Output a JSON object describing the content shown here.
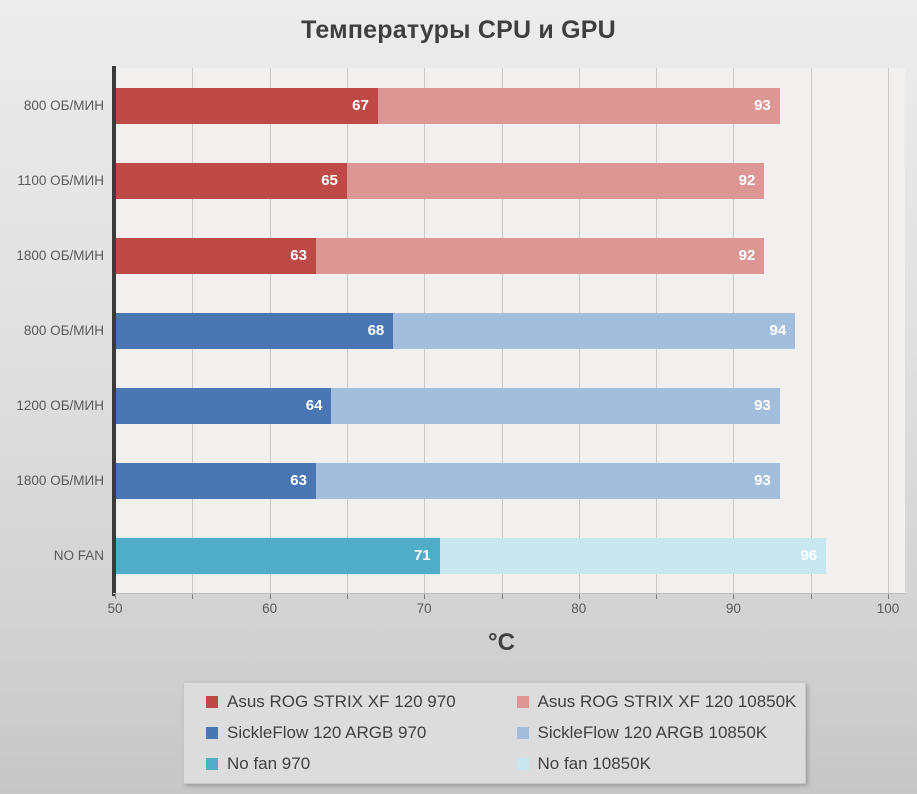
{
  "title": "Температуры CPU и GPU",
  "chart_data": {
    "type": "bar",
    "orientation": "horizontal",
    "title": "Температуры CPU и GPU",
    "xlabel": "°C",
    "xlim": [
      50,
      100
    ],
    "xticks_major": [
      50,
      60,
      70,
      80,
      90,
      100
    ],
    "minor_tick_step": 5,
    "grid": true,
    "legend_position": "bottom",
    "legend": [
      {
        "label": "Asus ROG STRIX XF 120 970",
        "color": "#be4a47"
      },
      {
        "label": "Asus ROG STRIX XF 120 10850K",
        "color": "#dc9795"
      },
      {
        "label": "SickleFlow 120 ARGB 970",
        "color": "#4a77b4"
      },
      {
        "label": "SickleFlow 120 ARGB 10850K",
        "color": "#a3bddc"
      },
      {
        "label": "No fan 970",
        "color": "#4fadc7"
      },
      {
        "label": "No fan 10850K",
        "color": "#c8e6ef"
      }
    ],
    "rows": [
      {
        "category": "800 ОБ/МИН",
        "values": [
          67,
          93
        ],
        "legend_pair": [
          0,
          1
        ]
      },
      {
        "category": "1100 ОБ/МИН",
        "values": [
          65,
          92
        ],
        "legend_pair": [
          0,
          1
        ]
      },
      {
        "category": "1800 ОБ/МИН",
        "values": [
          63,
          92
        ],
        "legend_pair": [
          0,
          1
        ]
      },
      {
        "category": "800 ОБ/МИН",
        "values": [
          68,
          94
        ],
        "legend_pair": [
          2,
          3
        ]
      },
      {
        "category": "1200 ОБ/МИН",
        "values": [
          64,
          93
        ],
        "legend_pair": [
          2,
          3
        ]
      },
      {
        "category": "1800 ОБ/МИН",
        "values": [
          63,
          93
        ],
        "legend_pair": [
          2,
          3
        ]
      },
      {
        "category": "NO FAN",
        "values": [
          71,
          96
        ],
        "legend_pair": [
          4,
          5
        ]
      }
    ]
  }
}
